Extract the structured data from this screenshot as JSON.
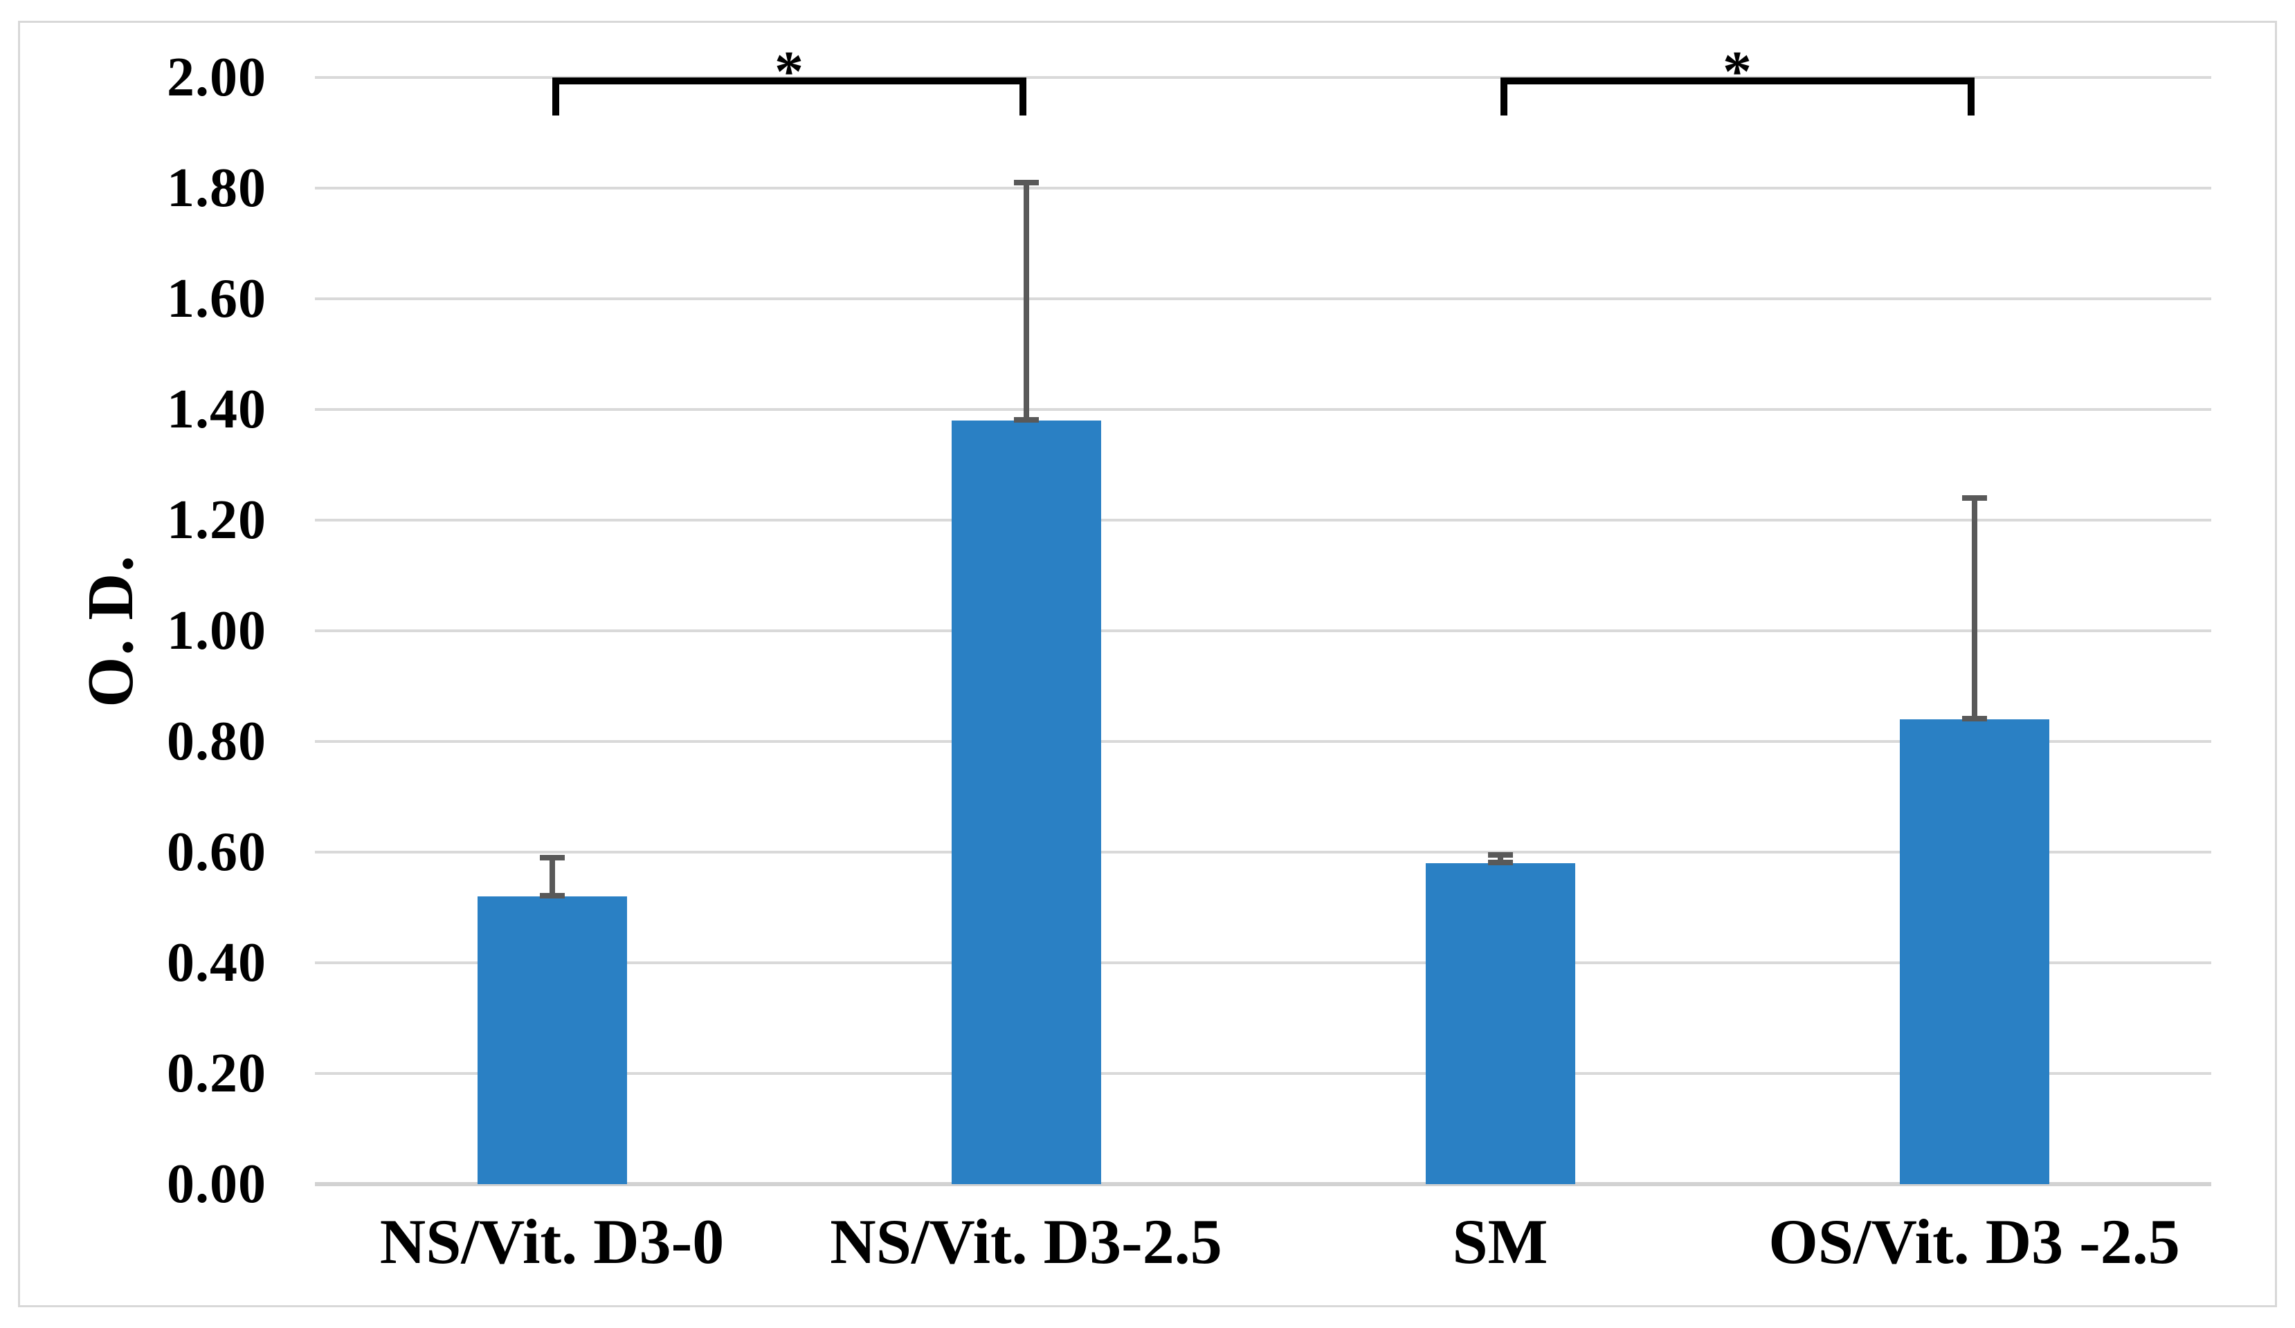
{
  "figure": {
    "background": "#ffffff",
    "frame_color": "#d8d8d8"
  },
  "chart_data": {
    "type": "bar",
    "title": "",
    "xlabel": "",
    "ylabel": "O. D.",
    "categories": [
      "NS/Vit. D3-0",
      "NS/Vit. D3-2.5",
      "SM",
      "OS/Vit. D3 -2.5"
    ],
    "values": [
      0.52,
      1.38,
      0.58,
      0.84
    ],
    "error_plus": [
      0.07,
      0.43,
      0.015,
      0.4
    ],
    "ylim": [
      0.0,
      2.0
    ],
    "ytick_step": 0.2,
    "yticks": [
      {
        "value": 2.0,
        "label": "2.00"
      },
      {
        "value": 1.8,
        "label": "1.80"
      },
      {
        "value": 1.6,
        "label": "1.60"
      },
      {
        "value": 1.4,
        "label": "1.40"
      },
      {
        "value": 1.2,
        "label": "1.20"
      },
      {
        "value": 1.0,
        "label": "1.00"
      },
      {
        "value": 0.8,
        "label": "0.80"
      },
      {
        "value": 0.6,
        "label": "0.60"
      },
      {
        "value": 0.4,
        "label": "0.40"
      },
      {
        "value": 0.2,
        "label": "0.20"
      },
      {
        "value": 0.0,
        "label": "0.00"
      }
    ],
    "grid": true,
    "legend": false,
    "bar_color": "#2a80c4",
    "error_bar_color": "#595959",
    "gridline_color": "#d9d9d9",
    "axis_line_color": "#d2d2d2",
    "text_color": "#000000",
    "significance_brackets": [
      {
        "from": 0,
        "to": 1,
        "from_category": "NS/Vit. D3-0",
        "to_category": "NS/Vit. D3-2.5",
        "label": "*"
      },
      {
        "from": 2,
        "to": 3,
        "from_category": "SM",
        "to_category": "OS/Vit. D3 -2.5",
        "label": "*"
      }
    ]
  }
}
